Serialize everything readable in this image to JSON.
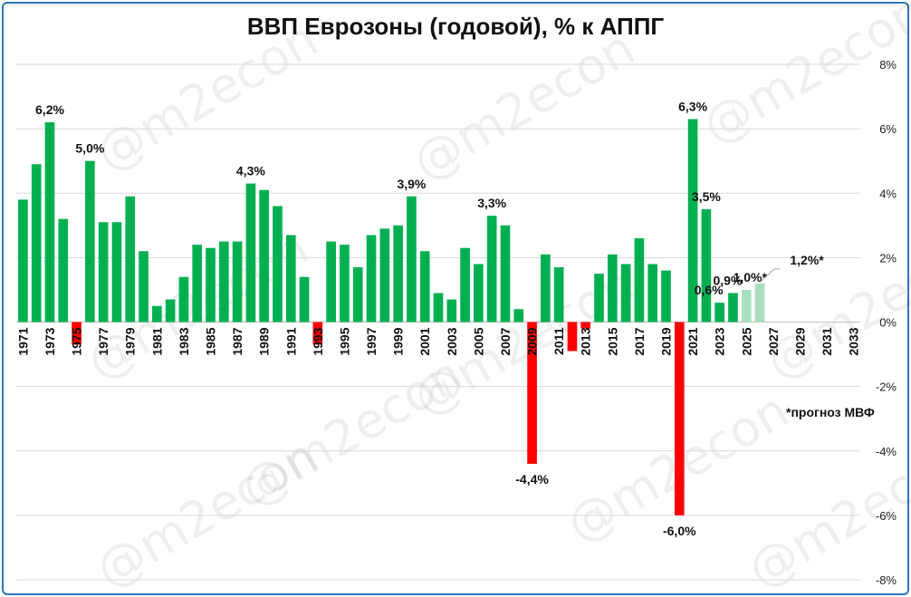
{
  "chart_data": {
    "type": "bar",
    "title": "ВВП Еврозоны (годовой), % к АППГ",
    "note": "*прогноз МВФ",
    "watermark": "@m2econ",
    "y_axis": {
      "min": -8,
      "max": 8,
      "step": 2,
      "tick_labels": [
        "8%",
        "6%",
        "4%",
        "2%",
        "0%",
        "-2%",
        "-4%",
        "-6%",
        "-8%"
      ],
      "position": "right"
    },
    "x_tick_labels": [
      "1971",
      "1973",
      "1975",
      "1977",
      "1979",
      "1981",
      "1983",
      "1985",
      "1987",
      "1989",
      "1991",
      "1993",
      "1995",
      "1997",
      "1999",
      "2001",
      "2003",
      "2005",
      "2007",
      "2009",
      "2011",
      "2013",
      "2015",
      "2017",
      "2019",
      "2021",
      "2023",
      "2025",
      "2027",
      "2029",
      "2031",
      "2033"
    ],
    "categories": [
      "1971",
      "1972",
      "1973",
      "1974",
      "1975",
      "1976",
      "1977",
      "1978",
      "1979",
      "1980",
      "1981",
      "1982",
      "1983",
      "1984",
      "1985",
      "1986",
      "1987",
      "1988",
      "1989",
      "1990",
      "1991",
      "1992",
      "1993",
      "1994",
      "1995",
      "1996",
      "1997",
      "1998",
      "1999",
      "2000",
      "2001",
      "2002",
      "2003",
      "2004",
      "2005",
      "2006",
      "2007",
      "2008",
      "2009",
      "2010",
      "2011",
      "2012",
      "2013",
      "2014",
      "2015",
      "2016",
      "2017",
      "2018",
      "2019",
      "2020",
      "2021",
      "2022",
      "2023",
      "2024",
      "2025",
      "2026",
      "2027",
      "2028",
      "2029",
      "2030",
      "2031",
      "2032",
      "2033"
    ],
    "values": [
      3.8,
      4.9,
      6.2,
      3.2,
      -0.7,
      5.0,
      3.1,
      3.1,
      3.9,
      2.2,
      0.5,
      0.7,
      1.4,
      2.4,
      2.3,
      2.5,
      2.5,
      4.3,
      4.1,
      3.6,
      2.7,
      1.4,
      -0.7,
      2.5,
      2.4,
      1.7,
      2.7,
      2.9,
      3.0,
      3.9,
      2.2,
      0.9,
      0.7,
      2.3,
      1.8,
      3.3,
      3.0,
      0.4,
      -4.4,
      2.1,
      1.7,
      -0.9,
      -0.2,
      1.5,
      2.1,
      1.8,
      2.6,
      1.8,
      1.6,
      -6.0,
      6.3,
      3.5,
      0.6,
      0.9,
      1.0,
      1.2,
      null,
      null,
      null,
      null,
      null,
      null,
      null
    ],
    "forecast_years": [
      "2025",
      "2026"
    ],
    "data_labels": [
      {
        "category": "1973",
        "text": "6,2%"
      },
      {
        "category": "1976",
        "text": "5,0%"
      },
      {
        "category": "1988",
        "text": "4,3%"
      },
      {
        "category": "2000",
        "text": "3,9%"
      },
      {
        "category": "2006",
        "text": "3,3%"
      },
      {
        "category": "2009",
        "text": "-4,4%"
      },
      {
        "category": "2020",
        "text": "-6,0%"
      },
      {
        "category": "2021",
        "text": "6,3%"
      },
      {
        "category": "2022",
        "text": "3,5%"
      },
      {
        "category": "2023",
        "text": "0,6%"
      },
      {
        "category": "2024",
        "text": "0,9%"
      },
      {
        "category": "2025",
        "text": "1,0%*"
      },
      {
        "category": "2026",
        "text": "1,2%*"
      }
    ],
    "colors": {
      "positive": "#00b050",
      "negative": "#ff0000",
      "forecast": "#a9dfbf",
      "grid": "#d9d9d9",
      "frame": "#2e75b6"
    },
    "grid": true,
    "legend": "none"
  }
}
